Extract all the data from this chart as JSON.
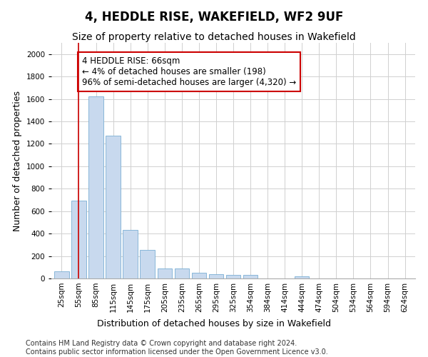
{
  "title": "4, HEDDLE RISE, WAKEFIELD, WF2 9UF",
  "subtitle": "Size of property relative to detached houses in Wakefield",
  "xlabel": "Distribution of detached houses by size in Wakefield",
  "ylabel": "Number of detached properties",
  "categories": [
    "25sqm",
    "55sqm",
    "85sqm",
    "115sqm",
    "145sqm",
    "175sqm",
    "205sqm",
    "235sqm",
    "265sqm",
    "295sqm",
    "325sqm",
    "354sqm",
    "384sqm",
    "414sqm",
    "444sqm",
    "474sqm",
    "504sqm",
    "534sqm",
    "564sqm",
    "594sqm",
    "624sqm"
  ],
  "values": [
    65,
    695,
    1625,
    1275,
    435,
    255,
    90,
    90,
    50,
    40,
    30,
    30,
    0,
    0,
    20,
    0,
    0,
    0,
    0,
    0,
    0
  ],
  "bar_color": "#c8d9ee",
  "bar_edge_color": "#7aafd4",
  "vline_x": 1,
  "vline_color": "#cc0000",
  "annotation_text": "4 HEDDLE RISE: 66sqm\n← 4% of detached houses are smaller (198)\n96% of semi-detached houses are larger (4,320) →",
  "annotation_box_color": "#ffffff",
  "annotation_box_edge_color": "#cc0000",
  "ylim": [
    0,
    2100
  ],
  "yticks": [
    0,
    200,
    400,
    600,
    800,
    1000,
    1200,
    1400,
    1600,
    1800,
    2000
  ],
  "footer_line1": "Contains HM Land Registry data © Crown copyright and database right 2024.",
  "footer_line2": "Contains public sector information licensed under the Open Government Licence v3.0.",
  "bg_color": "#ffffff",
  "grid_color": "#d0d0d0",
  "title_fontsize": 12,
  "subtitle_fontsize": 10,
  "axis_label_fontsize": 9,
  "tick_fontsize": 7.5,
  "annotation_fontsize": 8.5,
  "footer_fontsize": 7
}
